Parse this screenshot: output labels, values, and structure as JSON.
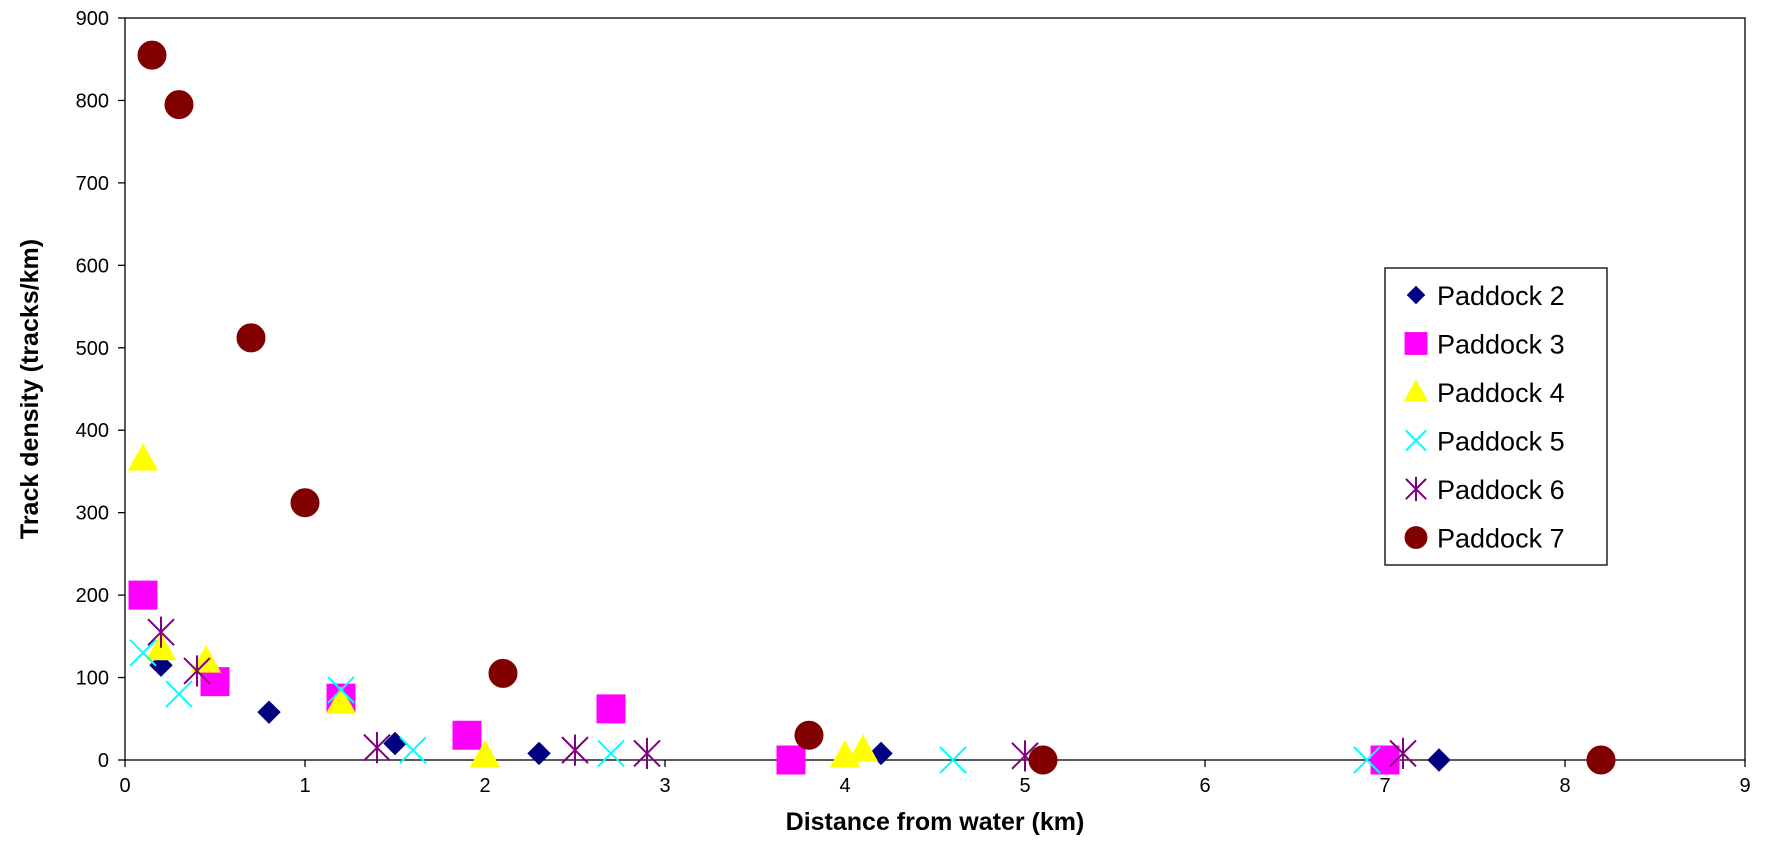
{
  "chart_data": {
    "type": "scatter",
    "title": "",
    "xlabel": "Distance from water (km)",
    "ylabel": "Track density (tracks/km)",
    "xlim": [
      0,
      9
    ],
    "ylim": [
      0,
      900
    ],
    "xticks": [
      "0",
      "1",
      "2",
      "3",
      "4",
      "5",
      "6",
      "7",
      "8",
      "9"
    ],
    "yticks": [
      "0",
      "100",
      "200",
      "300",
      "400",
      "500",
      "600",
      "700",
      "800",
      "900"
    ],
    "grid": false,
    "legend_position": "right",
    "series": [
      {
        "name": "Paddock 2",
        "marker": "diamond",
        "color": "#000080",
        "points": [
          [
            0.2,
            115
          ],
          [
            0.8,
            58
          ],
          [
            1.5,
            20
          ],
          [
            2.3,
            8
          ],
          [
            4.2,
            8
          ],
          [
            7.3,
            0
          ]
        ]
      },
      {
        "name": "Paddock 3",
        "marker": "square",
        "color": "#FF00FF",
        "points": [
          [
            0.1,
            200
          ],
          [
            0.5,
            95
          ],
          [
            1.2,
            75
          ],
          [
            1.9,
            30
          ],
          [
            2.7,
            62
          ],
          [
            3.7,
            0
          ],
          [
            7.0,
            0
          ]
        ]
      },
      {
        "name": "Paddock 4",
        "marker": "triangle",
        "color": "#FFFF00",
        "points": [
          [
            0.1,
            365
          ],
          [
            0.2,
            135
          ],
          [
            0.45,
            120
          ],
          [
            1.2,
            70
          ],
          [
            2.0,
            5
          ],
          [
            4.0,
            5
          ],
          [
            4.1,
            12
          ]
        ]
      },
      {
        "name": "Paddock 5",
        "marker": "x",
        "color": "#00FFFF",
        "points": [
          [
            0.1,
            130
          ],
          [
            0.3,
            80
          ],
          [
            1.2,
            85
          ],
          [
            1.6,
            12
          ],
          [
            2.7,
            8
          ],
          [
            4.6,
            0
          ],
          [
            6.9,
            0
          ]
        ]
      },
      {
        "name": "Paddock 6",
        "marker": "asterisk",
        "color": "#800080",
        "points": [
          [
            0.2,
            155
          ],
          [
            0.4,
            108
          ],
          [
            1.4,
            15
          ],
          [
            2.5,
            12
          ],
          [
            2.9,
            8
          ],
          [
            5.0,
            5
          ],
          [
            7.1,
            8
          ]
        ]
      },
      {
        "name": "Paddock 7",
        "marker": "circle",
        "color": "#800000",
        "points": [
          [
            0.15,
            855
          ],
          [
            0.3,
            795
          ],
          [
            0.7,
            512
          ],
          [
            1.0,
            312
          ],
          [
            2.1,
            105
          ],
          [
            3.8,
            30
          ],
          [
            5.1,
            0
          ],
          [
            8.2,
            0
          ]
        ]
      }
    ]
  }
}
